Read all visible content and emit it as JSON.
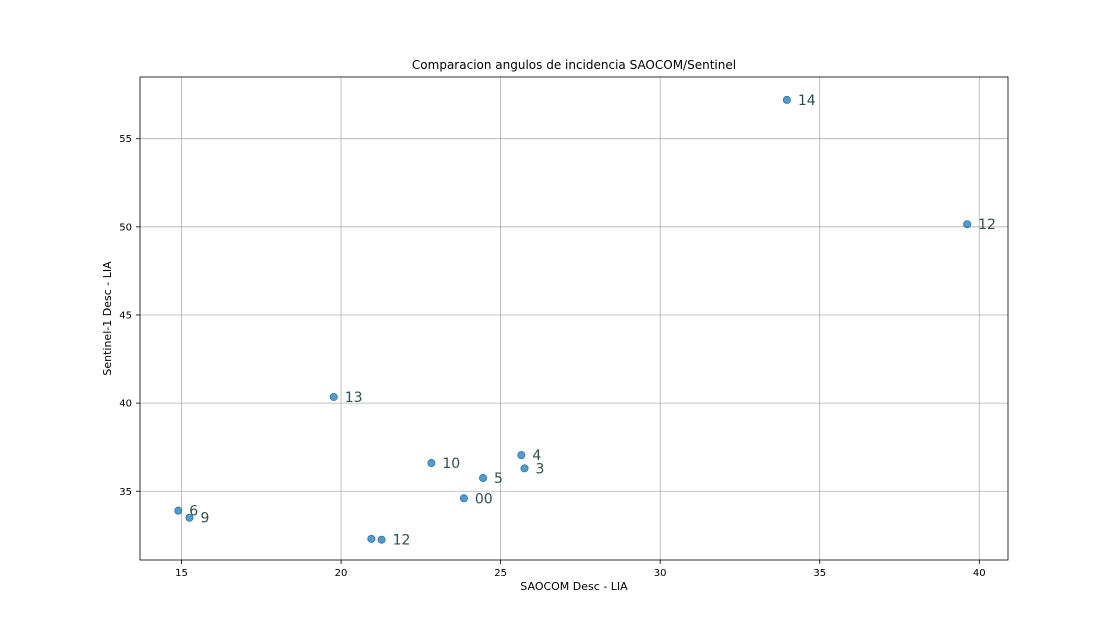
{
  "chart_data": {
    "type": "scatter",
    "title": "Comparacion angulos de incidencia SAOCOM/Sentinel",
    "xlabel": "SAOCOM Desc - LIA",
    "ylabel": "Sentinel-1 Desc - LIA",
    "xlim": [
      13.7,
      40.9
    ],
    "ylim": [
      31.1,
      58.5
    ],
    "xticks": [
      15,
      20,
      25,
      30,
      35,
      40
    ],
    "yticks": [
      35,
      40,
      45,
      50,
      55
    ],
    "grid": true,
    "marker_color": "#1f77b4",
    "points": [
      {
        "x": 33.97,
        "y": 57.2,
        "label": "14"
      },
      {
        "x": 39.62,
        "y": 50.15,
        "label": "12"
      },
      {
        "x": 19.77,
        "y": 40.35,
        "label": "13"
      },
      {
        "x": 22.83,
        "y": 36.6,
        "label": "10"
      },
      {
        "x": 25.65,
        "y": 37.05,
        "label": "4"
      },
      {
        "x": 25.75,
        "y": 36.3,
        "label": "3"
      },
      {
        "x": 24.45,
        "y": 35.75,
        "label": "5"
      },
      {
        "x": 23.85,
        "y": 34.6,
        "label": "00"
      },
      {
        "x": 14.9,
        "y": 33.9,
        "label": "6"
      },
      {
        "x": 15.25,
        "y": 33.5,
        "label": "9"
      },
      {
        "x": 20.95,
        "y": 32.3,
        "label": ""
      },
      {
        "x": 21.27,
        "y": 32.25,
        "label": "12"
      }
    ]
  }
}
